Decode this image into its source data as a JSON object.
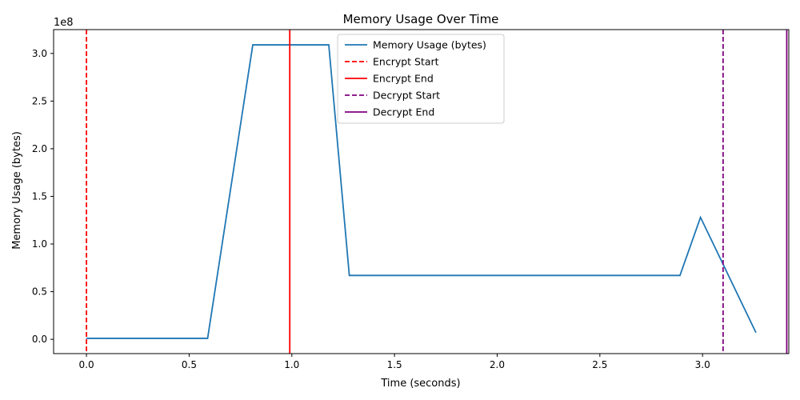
{
  "chart_data": {
    "type": "line",
    "title": "Memory Usage Over Time",
    "xlabel": "Time (seconds)",
    "ylabel": "Memory Usage (bytes)",
    "y_offset_label": "1e8",
    "xlim": [
      -0.16,
      3.42
    ],
    "ylim": [
      -0.15,
      3.25
    ],
    "y_unit_multiplier": 100000000,
    "x_ticks": [
      0.0,
      0.5,
      1.0,
      1.5,
      2.0,
      2.5,
      3.0
    ],
    "x_tick_labels": [
      "0.0",
      "0.5",
      "1.0",
      "1.5",
      "2.0",
      "2.5",
      "3.0"
    ],
    "y_ticks": [
      0.0,
      0.5,
      1.0,
      1.5,
      2.0,
      2.5,
      3.0
    ],
    "y_tick_labels": [
      "0.0",
      "0.5",
      "1.0",
      "1.5",
      "2.0",
      "2.5",
      "3.0"
    ],
    "grid": false,
    "legend_position": "top-center",
    "series": [
      {
        "name": "Memory Usage (bytes)",
        "color": "#1f77b4",
        "x": [
          0.0,
          0.59,
          0.81,
          1.18,
          1.28,
          2.89,
          2.99,
          3.26
        ],
        "y": [
          0.01,
          0.01,
          3.09,
          3.09,
          0.67,
          0.67,
          1.28,
          0.07
        ]
      }
    ],
    "vlines": [
      {
        "name": "Encrypt Start",
        "x": 0.0,
        "color": "#ff0000",
        "style": "dashed"
      },
      {
        "name": "Encrypt End",
        "x": 0.99,
        "color": "#ff0000",
        "style": "solid"
      },
      {
        "name": "Decrypt Start",
        "x": 3.1,
        "color": "#800080",
        "style": "dashed"
      },
      {
        "name": "Decrypt End",
        "x": 3.41,
        "color": "#800080",
        "style": "solid"
      }
    ]
  }
}
